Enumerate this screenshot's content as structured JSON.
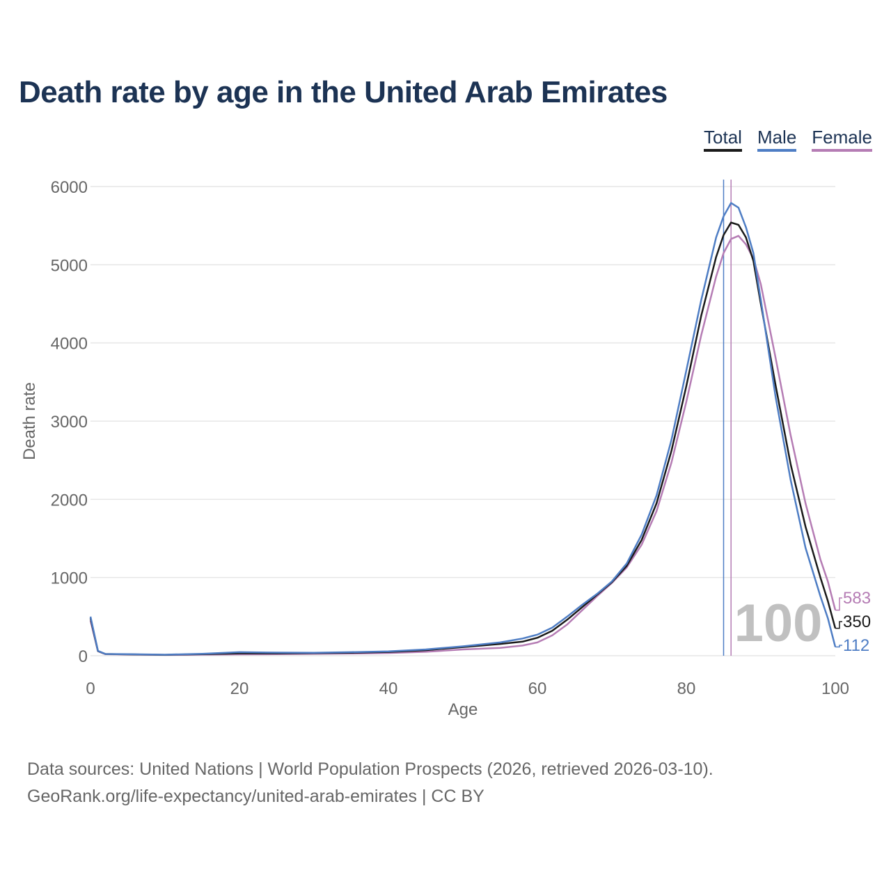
{
  "title": "Death rate by age in the United Arab Emirates",
  "legend": {
    "total": "Total",
    "male": "Male",
    "female": "Female"
  },
  "colors": {
    "total": "#1a1a1a",
    "male": "#4e7dc4",
    "female": "#b57cb4",
    "title": "#1c3354",
    "grid": "#e6e6e6",
    "axis_text": "#666666",
    "watermark": "#c0c0c0"
  },
  "chart_data": {
    "type": "line",
    "title": "Death rate by age in the United Arab Emirates",
    "xlabel": "Age",
    "ylabel": "Death rate",
    "xlim": [
      0,
      100
    ],
    "ylim": [
      0,
      6000
    ],
    "x_ticks": [
      "0",
      "20",
      "40",
      "60",
      "80",
      "100"
    ],
    "y_ticks": [
      "0",
      "1000",
      "2000",
      "3000",
      "4000",
      "5000",
      "6000"
    ],
    "watermark": "100",
    "reference_lines": [
      {
        "series": "Male",
        "x": 85
      },
      {
        "series": "Female",
        "x": 86
      }
    ],
    "series": [
      {
        "name": "Total",
        "end_label": "350",
        "points": [
          [
            0,
            480
          ],
          [
            1,
            60
          ],
          [
            2,
            22
          ],
          [
            5,
            18
          ],
          [
            10,
            12
          ],
          [
            15,
            20
          ],
          [
            20,
            30
          ],
          [
            25,
            30
          ],
          [
            30,
            33
          ],
          [
            35,
            38
          ],
          [
            40,
            48
          ],
          [
            45,
            70
          ],
          [
            50,
            110
          ],
          [
            55,
            150
          ],
          [
            58,
            180
          ],
          [
            60,
            230
          ],
          [
            62,
            320
          ],
          [
            64,
            460
          ],
          [
            66,
            620
          ],
          [
            68,
            780
          ],
          [
            70,
            940
          ],
          [
            72,
            1150
          ],
          [
            74,
            1480
          ],
          [
            76,
            1950
          ],
          [
            78,
            2620
          ],
          [
            80,
            3450
          ],
          [
            82,
            4350
          ],
          [
            84,
            5100
          ],
          [
            85,
            5380
          ],
          [
            86,
            5540
          ],
          [
            87,
            5510
          ],
          [
            88,
            5350
          ],
          [
            89,
            5050
          ],
          [
            90,
            4500
          ],
          [
            92,
            3450
          ],
          [
            94,
            2450
          ],
          [
            96,
            1650
          ],
          [
            98,
            1000
          ],
          [
            99,
            700
          ],
          [
            100,
            350
          ]
        ]
      },
      {
        "name": "Male",
        "end_label": "112",
        "points": [
          [
            0,
            500
          ],
          [
            1,
            62
          ],
          [
            2,
            22
          ],
          [
            5,
            20
          ],
          [
            10,
            13
          ],
          [
            15,
            25
          ],
          [
            20,
            45
          ],
          [
            25,
            40
          ],
          [
            30,
            38
          ],
          [
            35,
            45
          ],
          [
            40,
            55
          ],
          [
            45,
            80
          ],
          [
            50,
            120
          ],
          [
            55,
            170
          ],
          [
            58,
            220
          ],
          [
            60,
            270
          ],
          [
            62,
            360
          ],
          [
            64,
            500
          ],
          [
            66,
            650
          ],
          [
            68,
            790
          ],
          [
            70,
            950
          ],
          [
            72,
            1180
          ],
          [
            74,
            1550
          ],
          [
            76,
            2050
          ],
          [
            78,
            2760
          ],
          [
            80,
            3650
          ],
          [
            82,
            4550
          ],
          [
            84,
            5350
          ],
          [
            85,
            5620
          ],
          [
            86,
            5790
          ],
          [
            87,
            5730
          ],
          [
            88,
            5480
          ],
          [
            89,
            5150
          ],
          [
            90,
            4550
          ],
          [
            92,
            3300
          ],
          [
            94,
            2250
          ],
          [
            96,
            1380
          ],
          [
            98,
            760
          ],
          [
            99,
            480
          ],
          [
            100,
            112
          ]
        ]
      },
      {
        "name": "Female",
        "end_label": "583",
        "points": [
          [
            0,
            450
          ],
          [
            1,
            58
          ],
          [
            2,
            20
          ],
          [
            5,
            16
          ],
          [
            10,
            10
          ],
          [
            15,
            14
          ],
          [
            20,
            18
          ],
          [
            25,
            20
          ],
          [
            30,
            25
          ],
          [
            35,
            28
          ],
          [
            40,
            35
          ],
          [
            45,
            50
          ],
          [
            50,
            80
          ],
          [
            55,
            100
          ],
          [
            58,
            130
          ],
          [
            60,
            170
          ],
          [
            62,
            260
          ],
          [
            64,
            400
          ],
          [
            66,
            580
          ],
          [
            68,
            760
          ],
          [
            70,
            930
          ],
          [
            72,
            1130
          ],
          [
            74,
            1420
          ],
          [
            76,
            1850
          ],
          [
            78,
            2470
          ],
          [
            80,
            3250
          ],
          [
            82,
            4100
          ],
          [
            84,
            4850
          ],
          [
            85,
            5150
          ],
          [
            86,
            5330
          ],
          [
            87,
            5370
          ],
          [
            88,
            5260
          ],
          [
            89,
            5080
          ],
          [
            90,
            4750
          ],
          [
            92,
            3800
          ],
          [
            94,
            2820
          ],
          [
            96,
            1950
          ],
          [
            98,
            1230
          ],
          [
            99,
            950
          ],
          [
            100,
            583
          ]
        ]
      }
    ]
  },
  "footer": {
    "line1": "Data sources: United Nations | World Population Prospects (2026, retrieved 2026-03-10).",
    "line2": "GeoRank.org/life-expectancy/united-arab-emirates | CC BY"
  }
}
